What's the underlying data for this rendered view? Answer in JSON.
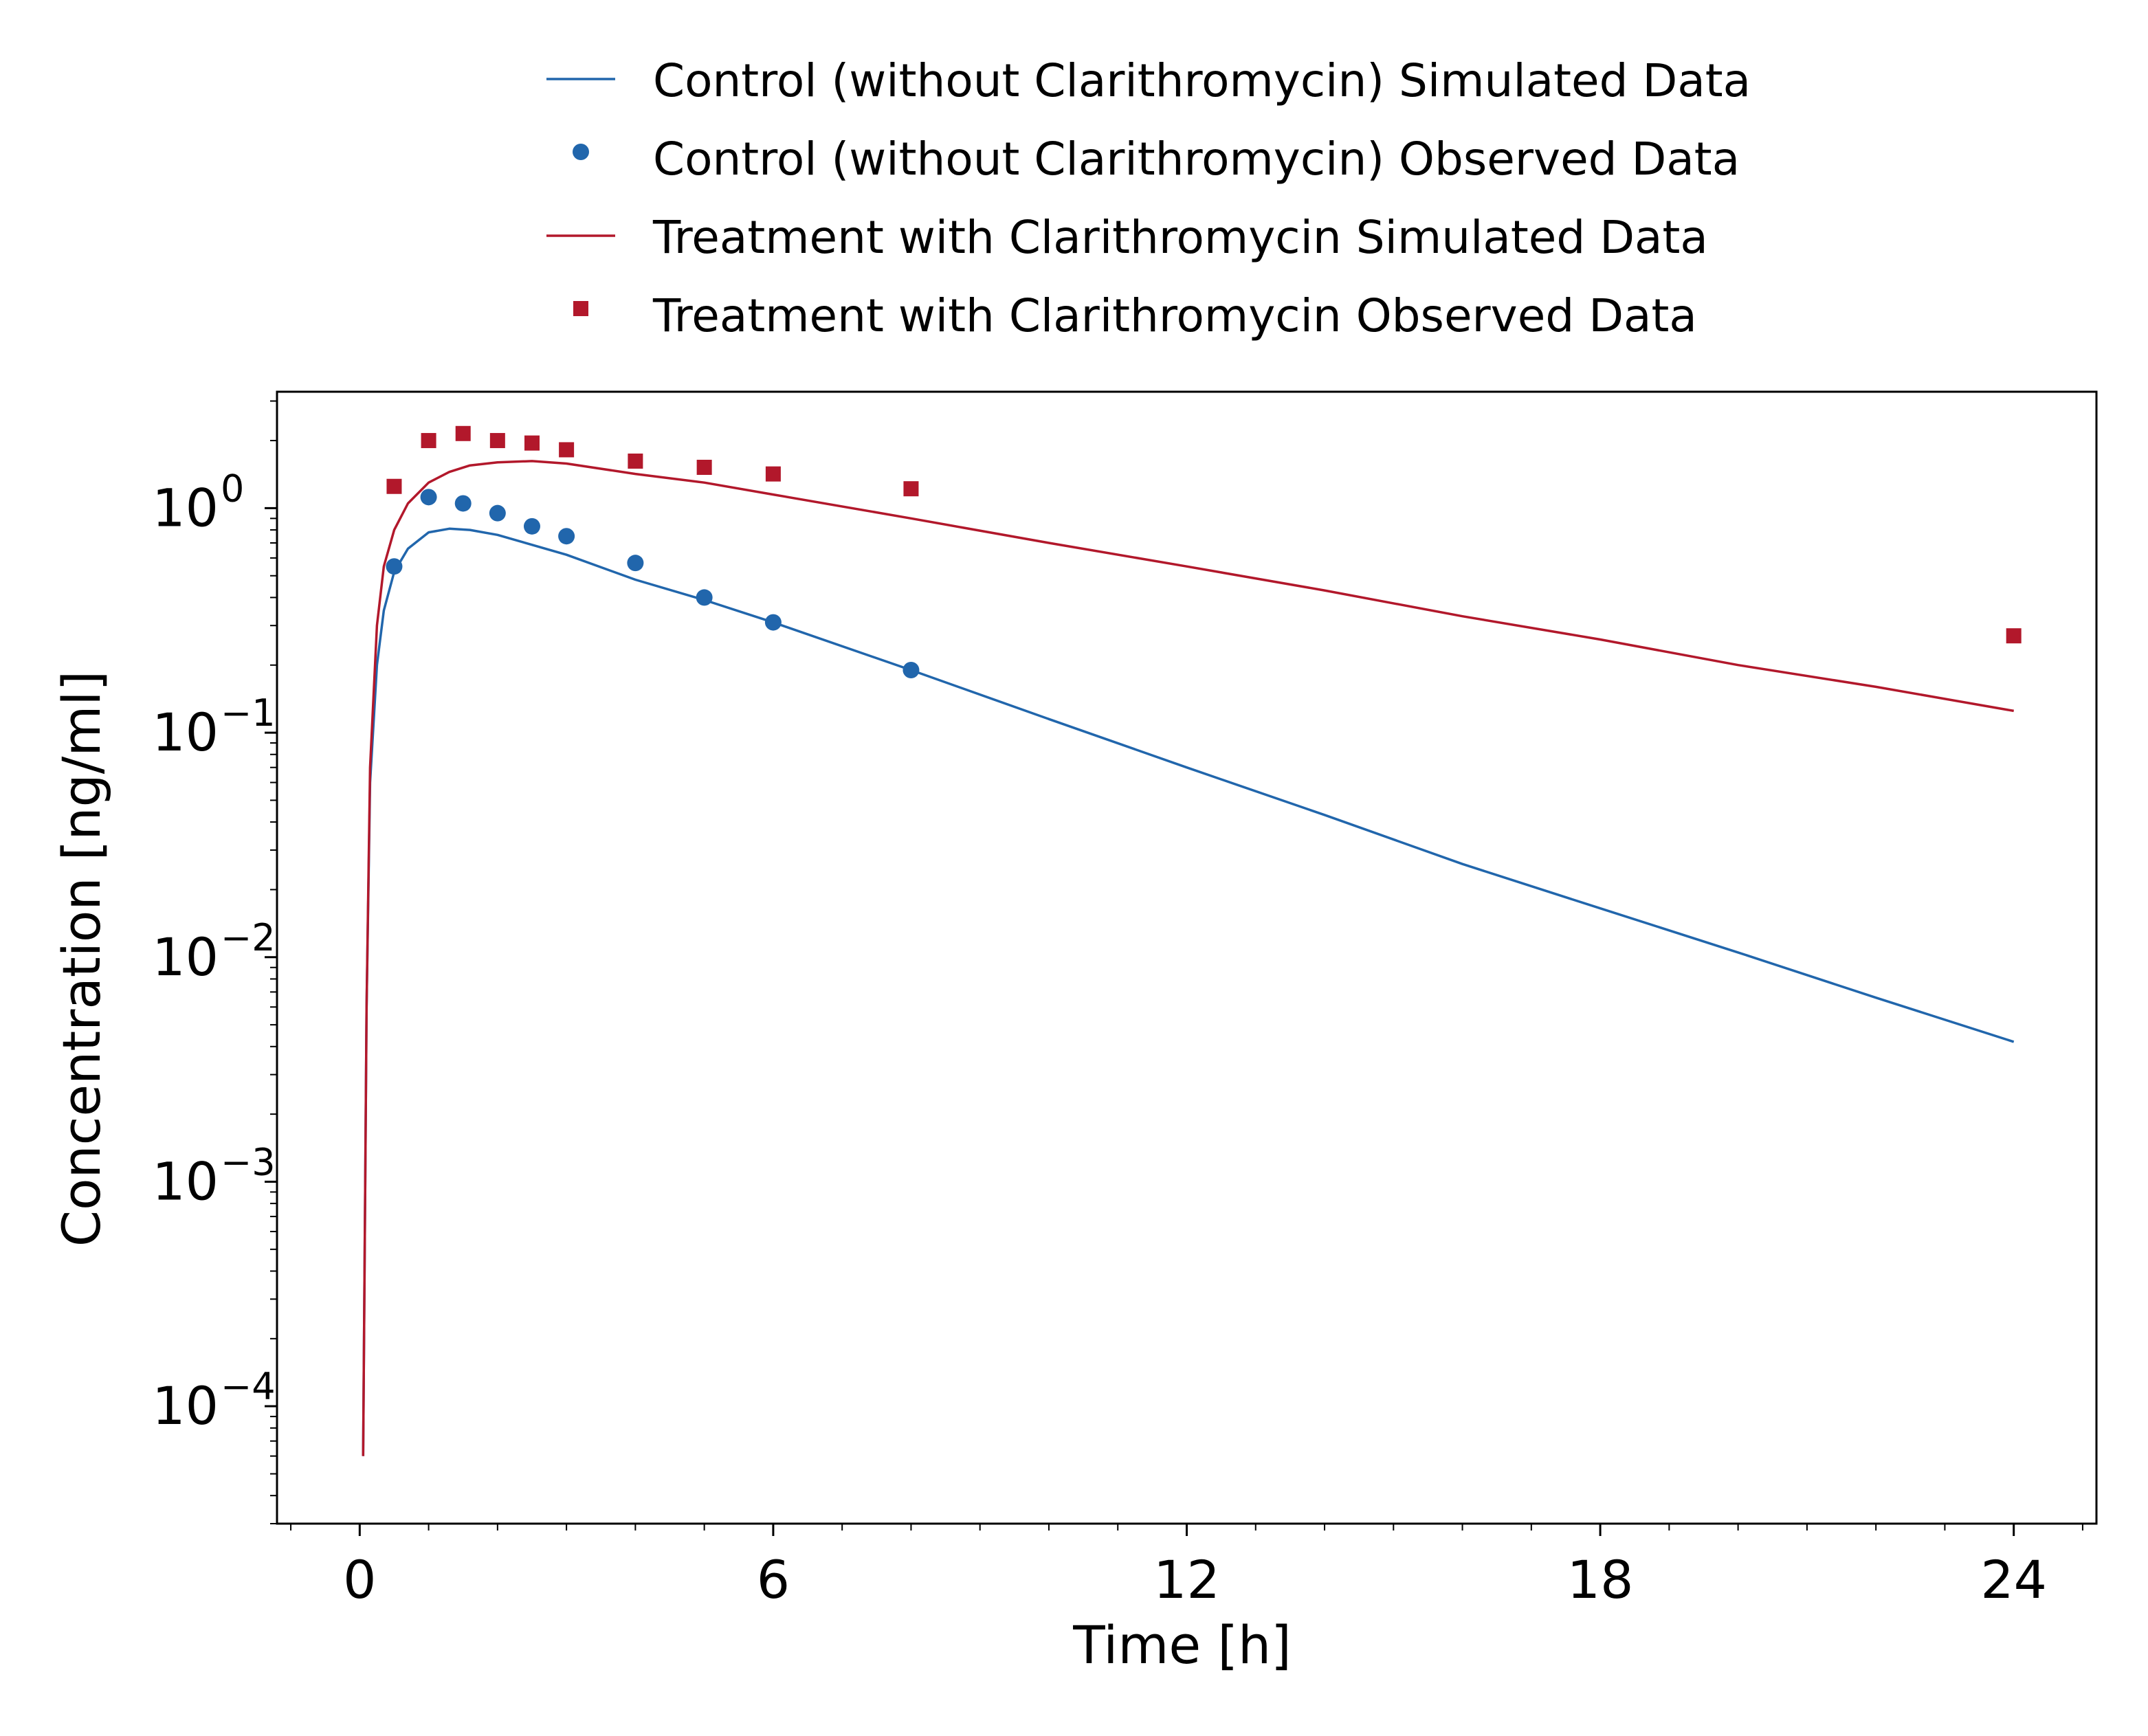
{
  "chart_data": {
    "type": "line",
    "title": "",
    "xlabel": "Time [h]",
    "ylabel": "Concentration [ng/ml]",
    "x_ticks": [
      0,
      6,
      12,
      18,
      24
    ],
    "x_tick_labels": [
      "0",
      "6",
      "12",
      "18",
      "24"
    ],
    "xlim": [
      -1.2,
      25.2
    ],
    "y_scale": "log",
    "ylim": [
      3e-05,
      3.3
    ],
    "y_ticks": [
      1,
      0.1,
      0.01,
      0.001,
      0.0001
    ],
    "y_tick_labels": [
      {
        "base": "10",
        "exp": "0"
      },
      {
        "base": "10",
        "exp": "−1"
      },
      {
        "base": "10",
        "exp": "−2"
      },
      {
        "base": "10",
        "exp": "−3"
      },
      {
        "base": "10",
        "exp": "−4"
      }
    ],
    "grid": false,
    "legend_position": "top-center, above plot",
    "series": [
      {
        "name": "Control (without Clarithromycin) Simulated Data",
        "kind": "line",
        "color": "#2166ac",
        "x": [
          0.05,
          0.1,
          0.15,
          0.25,
          0.35,
          0.5,
          0.7,
          1.0,
          1.3,
          1.6,
          2.0,
          3.0,
          4.0,
          5.0,
          6.0,
          8.0,
          10.0,
          12.0,
          14.0,
          16.0,
          18.0,
          20.0,
          22.0,
          24.0
        ],
        "y": [
          6e-05,
          0.006,
          0.06,
          0.2,
          0.35,
          0.52,
          0.66,
          0.78,
          0.81,
          0.8,
          0.76,
          0.62,
          0.48,
          0.39,
          0.31,
          0.19,
          0.115,
          0.07,
          0.043,
          0.026,
          0.0165,
          0.0105,
          0.0066,
          0.0042
        ]
      },
      {
        "name": "Control (without Clarithromycin) Observed Data",
        "kind": "scatter",
        "marker": "circle",
        "color": "#2166ac",
        "x": [
          0.5,
          1.0,
          1.5,
          2.0,
          2.5,
          3.0,
          4.0,
          5.0,
          6.0,
          8.0
        ],
        "y": [
          0.55,
          1.12,
          1.05,
          0.95,
          0.83,
          0.75,
          0.57,
          0.4,
          0.31,
          0.19
        ]
      },
      {
        "name": "Treatment with Clarithromycin Simulated Data",
        "kind": "line",
        "color": "#b2182b",
        "x": [
          0.05,
          0.1,
          0.15,
          0.25,
          0.35,
          0.5,
          0.7,
          1.0,
          1.3,
          1.6,
          2.0,
          2.5,
          3.0,
          4.0,
          5.0,
          6.0,
          8.0,
          10.0,
          12.0,
          14.0,
          16.0,
          18.0,
          20.0,
          22.0,
          24.0
        ],
        "y": [
          6e-05,
          0.006,
          0.07,
          0.3,
          0.55,
          0.8,
          1.05,
          1.3,
          1.45,
          1.55,
          1.6,
          1.62,
          1.58,
          1.42,
          1.3,
          1.15,
          0.9,
          0.7,
          0.55,
          0.43,
          0.33,
          0.26,
          0.2,
          0.16,
          0.125
        ]
      },
      {
        "name": "Treatment with Clarithromycin Observed Data",
        "kind": "scatter",
        "marker": "square",
        "color": "#b2182b",
        "x": [
          0.5,
          1.0,
          1.5,
          2.0,
          2.5,
          3.0,
          4.0,
          5.0,
          6.0,
          8.0,
          24.0
        ],
        "y": [
          1.25,
          2.0,
          2.15,
          2.0,
          1.95,
          1.82,
          1.62,
          1.52,
          1.42,
          1.22,
          0.27
        ]
      }
    ]
  }
}
